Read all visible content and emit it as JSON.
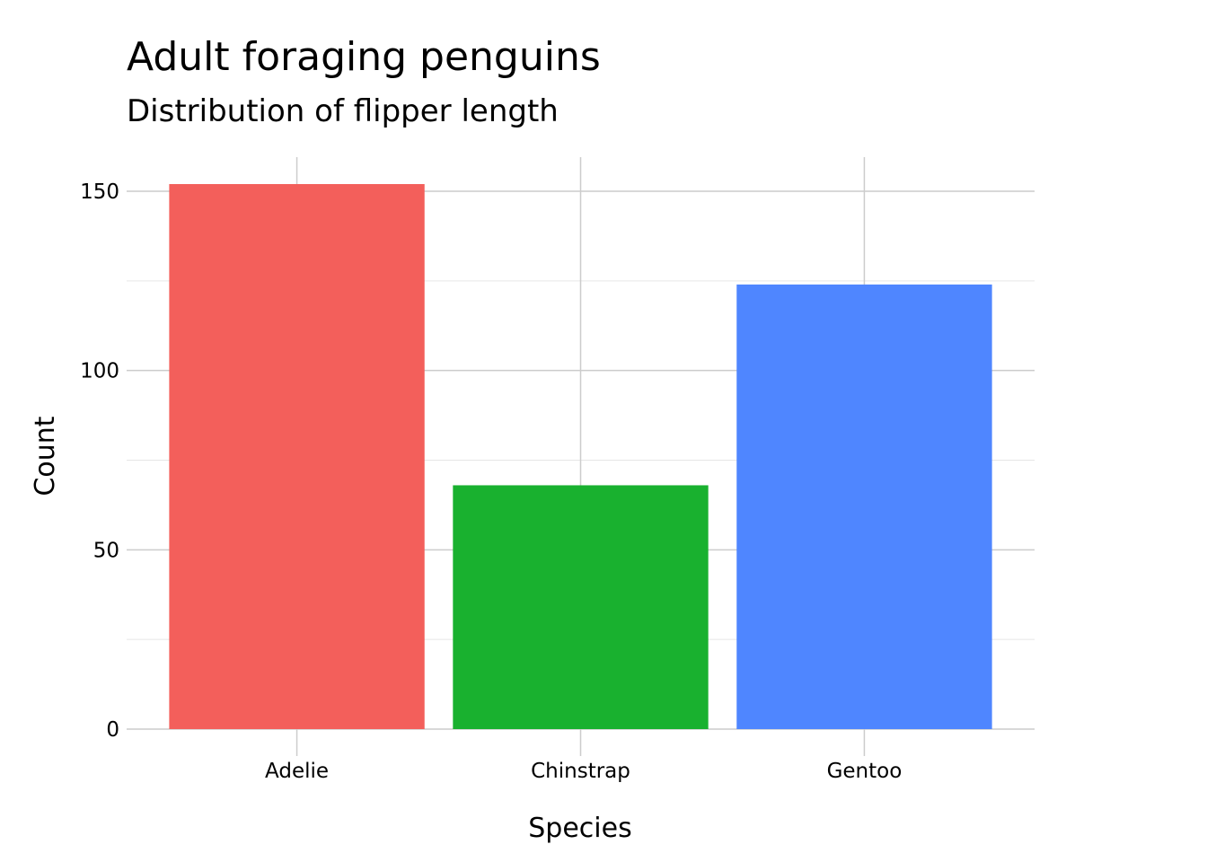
{
  "chart_data": {
    "type": "bar",
    "title": "Adult foraging penguins",
    "subtitle": "Distribution of flipper length",
    "xlabel": "Species",
    "ylabel": "Count",
    "categories": [
      "Adelie",
      "Chinstrap",
      "Gentoo"
    ],
    "values": [
      152,
      68,
      124
    ],
    "colors": [
      "#F35F5B",
      "#19B12F",
      "#4F86FF"
    ],
    "ylim": [
      0,
      160
    ],
    "yticks": [
      0,
      50,
      100,
      150
    ],
    "ytick_labels": [
      "0",
      "50",
      "100",
      "150"
    ],
    "grid": true,
    "legend": "none"
  }
}
